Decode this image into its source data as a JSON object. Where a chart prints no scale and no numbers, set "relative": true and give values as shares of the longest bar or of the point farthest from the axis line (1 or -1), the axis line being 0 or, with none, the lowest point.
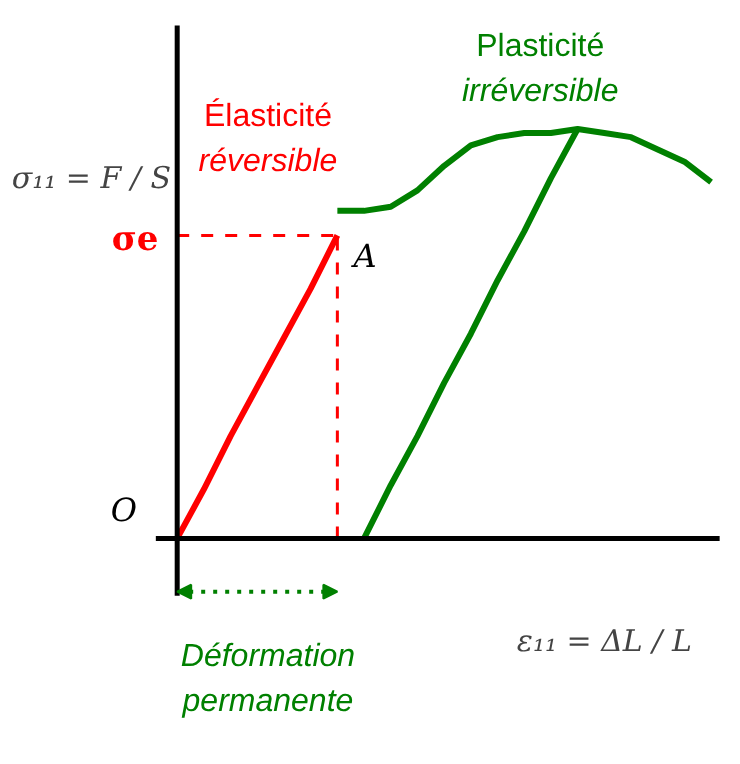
{
  "chart_data": {
    "type": "line",
    "relative": true,
    "grid": false,
    "marker": "none",
    "line_style": "solid",
    "xlabel": "ε₁₁ = ΔL / L",
    "ylabel": "σ₁₁ = F / S",
    "categories": [
      null,
      null,
      null,
      null,
      null,
      null,
      null,
      null,
      null,
      null,
      null,
      null,
      null,
      null,
      null,
      null,
      null,
      null,
      null,
      null,
      null
    ],
    "series": [
      {
        "color": "#ff0000",
        "values": [
          0,
          0.12,
          0.25,
          0.37,
          0.49,
          0.61,
          0.74,
          null,
          null,
          null,
          null,
          null,
          null,
          null,
          null,
          null,
          null,
          null,
          null,
          null,
          null
        ]
      },
      {
        "color": "#008000",
        "values": [
          null,
          null,
          null,
          null,
          null,
          null,
          0.8,
          0.8,
          0.81,
          0.85,
          0.91,
          0.96,
          0.98,
          0.99,
          0.99,
          1.0,
          0.99,
          0.98,
          0.95,
          0.92,
          0.87
        ]
      },
      {
        "color": "#008000",
        "values": [
          null,
          null,
          null,
          null,
          null,
          null,
          null,
          0,
          0.13,
          0.25,
          0.38,
          0.5,
          0.63,
          0.75,
          0.88,
          1.0,
          null,
          null,
          null,
          null,
          null
        ]
      }
    ],
    "ref_lines": [
      {
        "axis": "y",
        "value": 0.74,
        "label": "σe",
        "color": "#ff0000",
        "line_style": "dashed"
      }
    ],
    "annotations": [
      "Élasticité\nréversible",
      "Plasticité\nirréversible",
      "A",
      "O",
      "Déformation\npermanente"
    ]
  }
}
